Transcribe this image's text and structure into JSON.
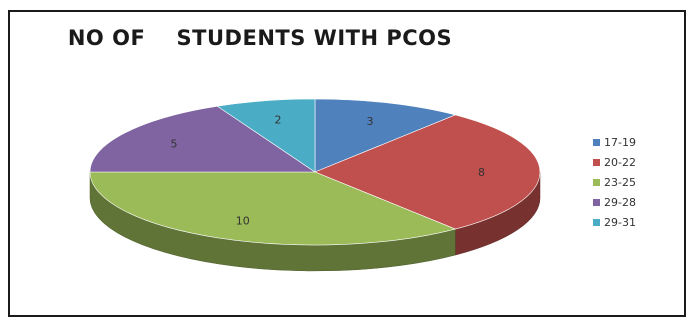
{
  "chart_data": {
    "type": "pie",
    "title": "NO OF    STUDENTS WITH PCOS",
    "categories": [
      "17-19",
      "20-22",
      "23-25",
      "29-28",
      "29-31"
    ],
    "values": [
      3,
      8,
      10,
      5,
      2
    ],
    "colors": [
      "#4f81bd",
      "#c0504d",
      "#9bbb59",
      "#8064a2",
      "#4bacc6"
    ],
    "legend_position": "right",
    "style": "3d"
  }
}
